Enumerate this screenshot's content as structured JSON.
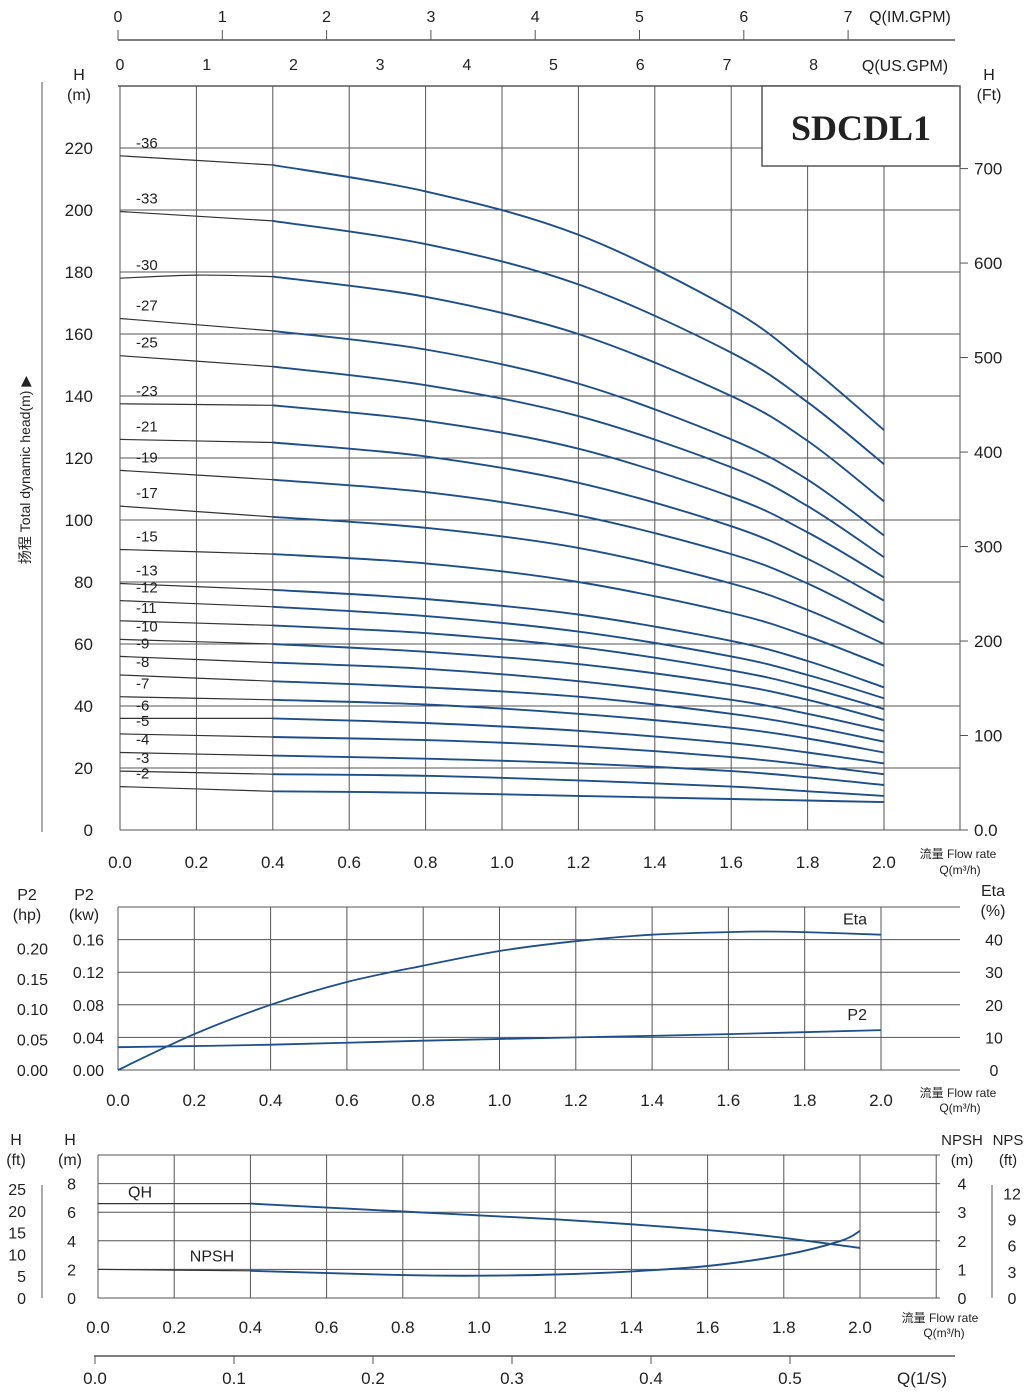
{
  "chart_data": [
    {
      "type": "line",
      "model": "SDCDL1",
      "x_axis_label": "流量 Flow rate",
      "x_axis_unit": "Q(m³/h)",
      "x_ticks": [
        "0.0",
        "0.2",
        "0.4",
        "0.6",
        "0.8",
        "1.0",
        "1.2",
        "1.4",
        "1.6",
        "1.8",
        "2.0"
      ],
      "xlim": [
        0,
        2.0
      ],
      "ylim": [
        0,
        240
      ],
      "y_left_unit": "H\n(m)",
      "y_left_ticks": [
        "0",
        "20",
        "40",
        "60",
        "80",
        "100",
        "120",
        "140",
        "160",
        "180",
        "200",
        "220"
      ],
      "y_right_unit": "H\n(Ft)",
      "y_right_ticks": [
        "0.0",
        "100",
        "200",
        "300",
        "400",
        "500",
        "600",
        "700"
      ],
      "y_side_label": "扬程  Total dynamic head(m)  ▶",
      "top_axis_im": {
        "label": "Q(IM.GPM)",
        "ticks": [
          "0",
          "1",
          "2",
          "3",
          "4",
          "5",
          "6",
          "7"
        ]
      },
      "top_axis_us": {
        "label": "Q(US.GPM)",
        "ticks": [
          "0",
          "1",
          "2",
          "3",
          "4",
          "5",
          "6",
          "7",
          "8"
        ]
      },
      "grid": true,
      "series": [
        {
          "name": "-36",
          "values": [
            [
              0,
              217.5
            ],
            [
              0.4,
              214.5
            ],
            [
              0.8,
              206
            ],
            [
              1.2,
              192
            ],
            [
              1.6,
              168
            ],
            [
              1.8,
              150
            ],
            [
              2.0,
              129
            ]
          ]
        },
        {
          "name": "-33",
          "values": [
            [
              0,
              199.5
            ],
            [
              0.4,
              196.5
            ],
            [
              0.8,
              189
            ],
            [
              1.2,
              176
            ],
            [
              1.6,
              154
            ],
            [
              1.8,
              138
            ],
            [
              2.0,
              118
            ]
          ]
        },
        {
          "name": "-30",
          "values": [
            [
              0,
              178
            ],
            [
              0.2,
              179
            ],
            [
              0.4,
              178.5
            ],
            [
              0.8,
              172
            ],
            [
              1.2,
              160
            ],
            [
              1.6,
              140
            ],
            [
              1.8,
              125.5
            ],
            [
              2.0,
              106
            ]
          ]
        },
        {
          "name": "-27",
          "values": [
            [
              0,
              165
            ],
            [
              0.4,
              161
            ],
            [
              0.8,
              155
            ],
            [
              1.2,
              144
            ],
            [
              1.6,
              126
            ],
            [
              1.8,
              113
            ],
            [
              2.0,
              95
            ]
          ]
        },
        {
          "name": "-25",
          "values": [
            [
              0,
              153
            ],
            [
              0.4,
              149.5
            ],
            [
              0.8,
              143.5
            ],
            [
              1.2,
              133.5
            ],
            [
              1.6,
              117
            ],
            [
              1.8,
              104.5
            ],
            [
              2.0,
              88
            ]
          ]
        },
        {
          "name": "-23",
          "values": [
            [
              0,
              137.5
            ],
            [
              0.4,
              137
            ],
            [
              0.8,
              132
            ],
            [
              1.2,
              123
            ],
            [
              1.6,
              107.5
            ],
            [
              1.8,
              96
            ],
            [
              2.0,
              81.5
            ]
          ]
        },
        {
          "name": "-21",
          "values": [
            [
              0,
              126
            ],
            [
              0.4,
              125
            ],
            [
              0.8,
              120.5
            ],
            [
              1.2,
              112
            ],
            [
              1.6,
              98
            ],
            [
              1.8,
              87.5
            ],
            [
              2.0,
              74
            ]
          ]
        },
        {
          "name": "-19",
          "values": [
            [
              0,
              116
            ],
            [
              0.4,
              113
            ],
            [
              0.8,
              109
            ],
            [
              1.2,
              101.5
            ],
            [
              1.6,
              89
            ],
            [
              1.8,
              79.5
            ],
            [
              2.0,
              67
            ]
          ]
        },
        {
          "name": "-17",
          "values": [
            [
              0,
              104.5
            ],
            [
              0.4,
              101
            ],
            [
              0.8,
              97.5
            ],
            [
              1.2,
              91
            ],
            [
              1.6,
              79.5
            ],
            [
              1.8,
              71
            ],
            [
              2.0,
              60
            ]
          ]
        },
        {
          "name": "-15",
          "values": [
            [
              0,
              90.5
            ],
            [
              0.4,
              89
            ],
            [
              0.8,
              86
            ],
            [
              1.2,
              80
            ],
            [
              1.6,
              70
            ],
            [
              1.8,
              62.5
            ],
            [
              2.0,
              53
            ]
          ]
        },
        {
          "name": "-13",
          "values": [
            [
              0,
              79.5
            ],
            [
              0.4,
              77.5
            ],
            [
              0.8,
              74.5
            ],
            [
              1.2,
              69.5
            ],
            [
              1.6,
              61
            ],
            [
              1.8,
              54.5
            ],
            [
              2.0,
              46
            ]
          ]
        },
        {
          "name": "-12",
          "values": [
            [
              0,
              74
            ],
            [
              0.4,
              72
            ],
            [
              0.8,
              69
            ],
            [
              1.2,
              64
            ],
            [
              1.6,
              56
            ],
            [
              1.8,
              50
            ],
            [
              2.0,
              42.5
            ]
          ]
        },
        {
          "name": "-11",
          "values": [
            [
              0,
              67.5
            ],
            [
              0.4,
              66
            ],
            [
              0.8,
              63.5
            ],
            [
              1.2,
              59
            ],
            [
              1.6,
              51.5
            ],
            [
              1.8,
              46
            ],
            [
              2.0,
              39
            ]
          ]
        },
        {
          "name": "-10",
          "values": [
            [
              0,
              61.5
            ],
            [
              0.4,
              60
            ],
            [
              0.8,
              57.5
            ],
            [
              1.2,
              53.5
            ],
            [
              1.6,
              47
            ],
            [
              1.8,
              42
            ],
            [
              2.0,
              35.5
            ]
          ]
        },
        {
          "name": "-9",
          "values": [
            [
              0,
              56
            ],
            [
              0.4,
              54
            ],
            [
              0.8,
              52
            ],
            [
              1.2,
              48
            ],
            [
              1.6,
              42
            ],
            [
              1.8,
              37.5
            ],
            [
              2.0,
              32
            ]
          ]
        },
        {
          "name": "-8",
          "values": [
            [
              0,
              50
            ],
            [
              0.4,
              48
            ],
            [
              0.8,
              46
            ],
            [
              1.2,
              43
            ],
            [
              1.6,
              37.5
            ],
            [
              1.8,
              33.5
            ],
            [
              2.0,
              28.5
            ]
          ]
        },
        {
          "name": "-7",
          "values": [
            [
              0,
              43
            ],
            [
              0.4,
              42
            ],
            [
              0.8,
              40.5
            ],
            [
              1.2,
              37.5
            ],
            [
              1.6,
              33
            ],
            [
              1.8,
              29.5
            ],
            [
              2.0,
              25
            ]
          ]
        },
        {
          "name": "-6",
          "values": [
            [
              0,
              36
            ],
            [
              0.4,
              36
            ],
            [
              0.8,
              34.5
            ],
            [
              1.2,
              32
            ],
            [
              1.6,
              28
            ],
            [
              1.8,
              25
            ],
            [
              2.0,
              21.5
            ]
          ]
        },
        {
          "name": "-5",
          "values": [
            [
              0,
              31
            ],
            [
              0.4,
              30
            ],
            [
              0.8,
              29
            ],
            [
              1.2,
              27
            ],
            [
              1.6,
              23.5
            ],
            [
              1.8,
              21
            ],
            [
              2.0,
              18
            ]
          ]
        },
        {
          "name": "-4",
          "values": [
            [
              0,
              25
            ],
            [
              0.4,
              24
            ],
            [
              0.8,
              23
            ],
            [
              1.2,
              21.5
            ],
            [
              1.6,
              19
            ],
            [
              1.8,
              17
            ],
            [
              2.0,
              14.5
            ]
          ]
        },
        {
          "name": "-3",
          "values": [
            [
              0,
              19
            ],
            [
              0.4,
              18
            ],
            [
              0.8,
              17.5
            ],
            [
              1.2,
              16
            ],
            [
              1.6,
              14
            ],
            [
              1.8,
              12.5
            ],
            [
              2.0,
              11
            ]
          ]
        },
        {
          "name": "-2",
          "values": [
            [
              0,
              14
            ],
            [
              0.4,
              12.5
            ],
            [
              0.8,
              12
            ],
            [
              1.2,
              11
            ],
            [
              1.6,
              10
            ],
            [
              1.8,
              9.5
            ],
            [
              2.0,
              9
            ]
          ]
        }
      ]
    },
    {
      "type": "line",
      "x_axis_label": "流量 Flow rate",
      "x_axis_unit": "Q(m³/h)",
      "x_ticks": [
        "0.0",
        "0.2",
        "0.4",
        "0.6",
        "0.8",
        "1.0",
        "1.2",
        "1.4",
        "1.6",
        "1.8",
        "2.0"
      ],
      "xlim": [
        0,
        2.0
      ],
      "y_left_outer_unit": "P2\n(hp)",
      "y_left_outer_ticks": [
        "0.00",
        "0.05",
        "0.10",
        "0.15",
        "0.20"
      ],
      "y_left_unit": "P2\n(kw)",
      "y_left_ticks": [
        "0.00",
        "0.04",
        "0.08",
        "0.12",
        "0.16"
      ],
      "ylim": [
        0,
        0.2
      ],
      "y_right_unit": "Eta\n(%)",
      "y_right_ticks": [
        "0",
        "10",
        "20",
        "30",
        "40"
      ],
      "grid": true,
      "series": [
        {
          "name": "Eta",
          "axis": "%",
          "values": [
            [
              0,
              0
            ],
            [
              0.2,
              11
            ],
            [
              0.4,
              20
            ],
            [
              0.6,
              27
            ],
            [
              0.8,
              32
            ],
            [
              1.0,
              36.5
            ],
            [
              1.2,
              39.5
            ],
            [
              1.4,
              41.5
            ],
            [
              1.6,
              42.3
            ],
            [
              1.7,
              42.5
            ],
            [
              1.8,
              42.3
            ],
            [
              2.0,
              41.5
            ]
          ]
        },
        {
          "name": "P2",
          "axis": "kw",
          "values": [
            [
              0,
              0.028
            ],
            [
              0.4,
              0.031
            ],
            [
              0.8,
              0.036
            ],
            [
              1.2,
              0.04
            ],
            [
              1.6,
              0.044
            ],
            [
              2.0,
              0.049
            ]
          ]
        }
      ]
    },
    {
      "type": "line",
      "x_axis_label": "流量 Flow rate",
      "x_axis_unit": "Q(m³/h)",
      "x_ticks": [
        "0.0",
        "0.2",
        "0.4",
        "0.6",
        "0.8",
        "1.0",
        "1.2",
        "1.4",
        "1.6",
        "1.8",
        "2.0"
      ],
      "xlim": [
        0,
        2.0
      ],
      "y_left_outer_unit": "H\n(ft)",
      "y_left_outer_ticks": [
        "0",
        "5",
        "10",
        "15",
        "20",
        "25"
      ],
      "y_left_unit": "H\n(m)",
      "y_left_ticks": [
        "0",
        "2",
        "4",
        "6",
        "8"
      ],
      "ylim": [
        0,
        8
      ],
      "y_right_unit": "NPSH\n(m)",
      "y_right_ticks": [
        "0",
        "1",
        "2",
        "3",
        "4"
      ],
      "y_right_outer_unit": "NPS\n(ft)",
      "y_right_outer_ticks": [
        "0",
        "3",
        "6",
        "9",
        "12"
      ],
      "bottom_axis_ls": {
        "label": "Q(1/S)",
        "ticks": [
          "0.0",
          "0.1",
          "0.2",
          "0.3",
          "0.4",
          "0.5"
        ]
      },
      "grid": true,
      "series": [
        {
          "name": "QH",
          "axis": "m",
          "values": [
            [
              0,
              6.6
            ],
            [
              0.4,
              6.6
            ],
            [
              0.8,
              6.05
            ],
            [
              1.2,
              5.5
            ],
            [
              1.6,
              4.75
            ],
            [
              1.8,
              4.2
            ],
            [
              2.0,
              3.5
            ]
          ]
        },
        {
          "name": "NPSH",
          "axis": "NPSH m",
          "values": [
            [
              0,
              1.0
            ],
            [
              0.4,
              0.95
            ],
            [
              0.8,
              0.8
            ],
            [
              1.0,
              0.78
            ],
            [
              1.2,
              0.82
            ],
            [
              1.4,
              0.93
            ],
            [
              1.6,
              1.12
            ],
            [
              1.8,
              1.5
            ],
            [
              1.95,
              2.0
            ],
            [
              2.0,
              2.35
            ]
          ]
        }
      ]
    }
  ]
}
